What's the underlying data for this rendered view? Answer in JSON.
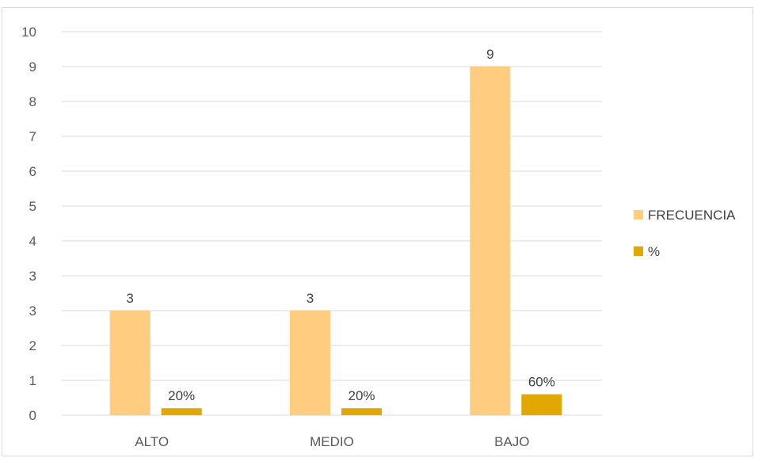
{
  "chart_data": {
    "type": "bar",
    "categories": [
      "ALTO",
      "MEDIO",
      "BAJO"
    ],
    "series": [
      {
        "name": "FRECUENCIA",
        "values": [
          3,
          3,
          9
        ],
        "labels": [
          "3",
          "3",
          "9"
        ],
        "color": "#FFCC80"
      },
      {
        "name": "%",
        "values": [
          0.2,
          0.2,
          0.6
        ],
        "labels": [
          "20%",
          "20%",
          "60%"
        ],
        "color": "#E0A800"
      }
    ],
    "y_ticks": [
      "0",
      "1",
      "2",
      "3",
      "3",
      "4",
      "5",
      "6",
      "7",
      "8",
      "9",
      "10"
    ],
    "ylim": [
      0,
      10
    ],
    "grid": true,
    "legend": "right"
  }
}
